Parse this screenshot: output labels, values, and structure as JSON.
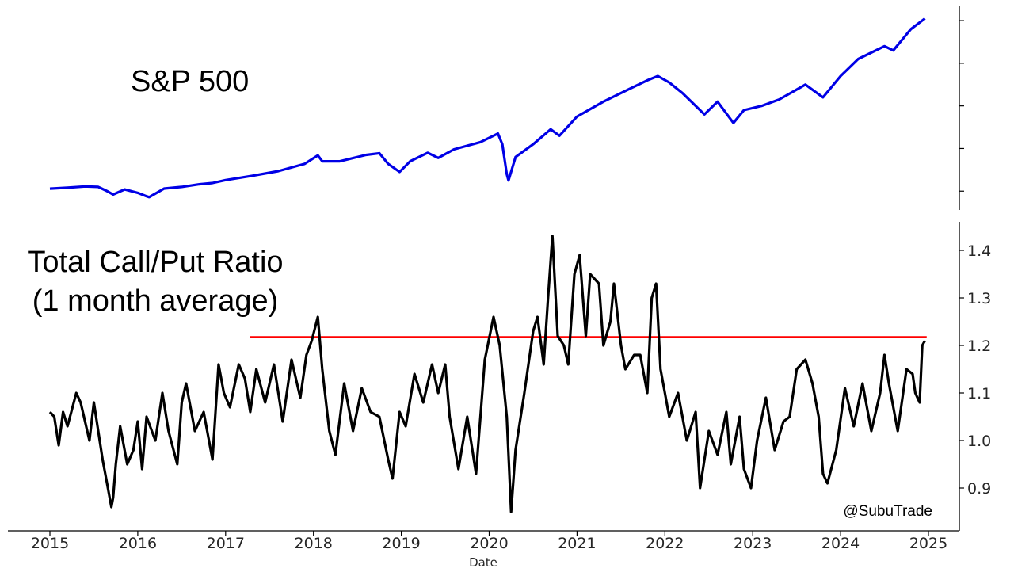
{
  "chart_data": [
    {
      "type": "line",
      "title": "S&P 500",
      "series": [
        {
          "color": "#0000e6",
          "x": [
            2015.0,
            2015.2,
            2015.4,
            2015.55,
            2015.65,
            2015.72,
            2015.85,
            2016.0,
            2016.1,
            2016.13,
            2016.3,
            2016.5,
            2016.7,
            2016.85,
            2017.0,
            2017.3,
            2017.6,
            2017.9,
            2018.05,
            2018.1,
            2018.3,
            2018.6,
            2018.75,
            2018.85,
            2018.98,
            2019.1,
            2019.3,
            2019.42,
            2019.6,
            2019.9,
            2020.1,
            2020.15,
            2020.2,
            2020.22,
            2020.3,
            2020.5,
            2020.7,
            2020.8,
            2021.0,
            2021.3,
            2021.6,
            2021.8,
            2021.92,
            2022.05,
            2022.2,
            2022.45,
            2022.6,
            2022.78,
            2022.9,
            2023.1,
            2023.3,
            2023.6,
            2023.8,
            2024.0,
            2024.2,
            2024.5,
            2024.6,
            2024.8,
            2024.96
          ],
          "values": [
            2058,
            2080,
            2110,
            2100,
            2000,
            1920,
            2040,
            1960,
            1880,
            1860,
            2060,
            2100,
            2160,
            2190,
            2260,
            2360,
            2470,
            2640,
            2840,
            2700,
            2700,
            2850,
            2890,
            2640,
            2450,
            2700,
            2900,
            2780,
            2980,
            3150,
            3350,
            3100,
            2400,
            2250,
            2800,
            3100,
            3450,
            3300,
            3750,
            4100,
            4400,
            4600,
            4700,
            4550,
            4300,
            3800,
            4100,
            3600,
            3900,
            4000,
            4150,
            4500,
            4200,
            4700,
            5100,
            5400,
            5300,
            5800,
            6050
          ]
        }
      ]
    },
    {
      "type": "line",
      "title": "Total Call/Put Ratio (1 month average)",
      "xlabel": "Date",
      "ylim": [
        0.82,
        1.46
      ],
      "yticks": [
        "0.9",
        "1.0",
        "1.1",
        "1.2",
        "1.3",
        "1.4"
      ],
      "xticks": [
        "2015",
        "2016",
        "2017",
        "2018",
        "2019",
        "2020",
        "2021",
        "2022",
        "2023",
        "2024",
        "2025"
      ],
      "xlim": [
        2014.52,
        2025.35
      ],
      "reference_line": {
        "y": 1.218,
        "x_from": 2017.28,
        "x_to": 2024.98,
        "color": "#ff0000"
      },
      "series": [
        {
          "color": "#000000",
          "x": [
            2015.0,
            2015.05,
            2015.1,
            2015.15,
            2015.2,
            2015.3,
            2015.35,
            2015.45,
            2015.5,
            2015.55,
            2015.6,
            2015.65,
            2015.7,
            2015.72,
            2015.75,
            2015.8,
            2015.88,
            2015.95,
            2016.0,
            2016.05,
            2016.1,
            2016.2,
            2016.28,
            2016.35,
            2016.45,
            2016.5,
            2016.55,
            2016.65,
            2016.75,
            2016.85,
            2016.92,
            2016.98,
            2017.05,
            2017.15,
            2017.22,
            2017.28,
            2017.35,
            2017.45,
            2017.55,
            2017.65,
            2017.75,
            2017.85,
            2017.92,
            2017.98,
            2018.05,
            2018.1,
            2018.18,
            2018.25,
            2018.35,
            2018.45,
            2018.55,
            2018.65,
            2018.75,
            2018.85,
            2018.9,
            2018.98,
            2019.05,
            2019.15,
            2019.25,
            2019.35,
            2019.42,
            2019.5,
            2019.55,
            2019.65,
            2019.75,
            2019.85,
            2019.95,
            2020.05,
            2020.12,
            2020.2,
            2020.25,
            2020.3,
            2020.4,
            2020.5,
            2020.55,
            2020.62,
            2020.67,
            2020.72,
            2020.78,
            2020.85,
            2020.9,
            2020.97,
            2021.03,
            2021.1,
            2021.15,
            2021.25,
            2021.3,
            2021.38,
            2021.42,
            2021.5,
            2021.55,
            2021.65,
            2021.72,
            2021.8,
            2021.85,
            2021.9,
            2021.95,
            2022.05,
            2022.15,
            2022.25,
            2022.35,
            2022.4,
            2022.5,
            2022.6,
            2022.7,
            2022.75,
            2022.85,
            2022.9,
            2022.98,
            2023.05,
            2023.15,
            2023.25,
            2023.35,
            2023.42,
            2023.5,
            2023.6,
            2023.68,
            2023.75,
            2023.8,
            2023.85,
            2023.95,
            2024.05,
            2024.15,
            2024.25,
            2024.35,
            2024.45,
            2024.5,
            2024.55,
            2024.65,
            2024.75,
            2024.82,
            2024.85,
            2024.9,
            2024.93,
            2024.96
          ],
          "values": [
            1.06,
            1.05,
            0.99,
            1.06,
            1.03,
            1.1,
            1.08,
            1.0,
            1.08,
            1.02,
            0.96,
            0.91,
            0.86,
            0.88,
            0.95,
            1.03,
            0.95,
            0.98,
            1.04,
            0.94,
            1.05,
            1.0,
            1.1,
            1.02,
            0.95,
            1.08,
            1.12,
            1.02,
            1.06,
            0.96,
            1.16,
            1.1,
            1.07,
            1.16,
            1.13,
            1.06,
            1.15,
            1.08,
            1.16,
            1.04,
            1.17,
            1.09,
            1.18,
            1.21,
            1.26,
            1.15,
            1.02,
            0.97,
            1.12,
            1.02,
            1.11,
            1.06,
            1.05,
            0.96,
            0.92,
            1.06,
            1.03,
            1.14,
            1.08,
            1.16,
            1.1,
            1.16,
            1.05,
            0.94,
            1.05,
            0.93,
            1.17,
            1.26,
            1.2,
            1.05,
            0.85,
            0.98,
            1.1,
            1.23,
            1.26,
            1.16,
            1.3,
            1.43,
            1.22,
            1.2,
            1.16,
            1.35,
            1.39,
            1.22,
            1.35,
            1.33,
            1.2,
            1.25,
            1.33,
            1.2,
            1.15,
            1.18,
            1.18,
            1.1,
            1.3,
            1.33,
            1.15,
            1.05,
            1.1,
            1.0,
            1.06,
            0.9,
            1.02,
            0.97,
            1.06,
            0.95,
            1.05,
            0.94,
            0.9,
            1.0,
            1.09,
            0.98,
            1.04,
            1.05,
            1.15,
            1.17,
            1.12,
            1.05,
            0.93,
            0.91,
            0.98,
            1.11,
            1.03,
            1.12,
            1.02,
            1.1,
            1.18,
            1.12,
            1.02,
            1.15,
            1.14,
            1.1,
            1.08,
            1.2,
            1.21
          ]
        }
      ]
    }
  ],
  "credit": "@SubuTrade"
}
